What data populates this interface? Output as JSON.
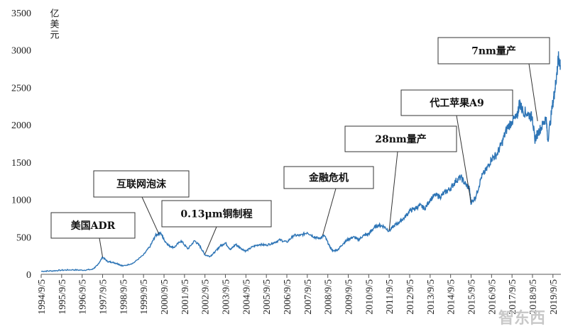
{
  "chart_data": {
    "type": "line",
    "title": "",
    "unit": "亿美元",
    "ylim": [
      0,
      3500
    ],
    "yticks": [
      0,
      500,
      1000,
      1500,
      2000,
      2500,
      3000,
      3500
    ],
    "xticks": [
      "1994/9/5",
      "1995/9/5",
      "1996/9/5",
      "1997/9/5",
      "1998/9/5",
      "1999/9/5",
      "2000/9/5",
      "2001/9/5",
      "2002/9/5",
      "2003/9/5",
      "2004/9/5",
      "2005/9/5",
      "2006/9/5",
      "2007/9/5",
      "2008/9/5",
      "2009/9/5",
      "2010/9/5",
      "2011/9/5",
      "2012/9/5",
      "2013/9/5",
      "2014/9/5",
      "2015/9/5",
      "2016/9/5",
      "2017/9/5",
      "2018/9/5",
      "2019/9/5"
    ],
    "line_color": "#2e75b6",
    "series": [
      {
        "x": [
          "1994-09-05",
          "1995-03-05",
          "1995-09-05",
          "1996-03-05",
          "1996-09-05",
          "1997-03-05",
          "1997-06-05",
          "1997-09-05",
          "1997-12-05",
          "1998-03-05",
          "1998-06-05",
          "1998-09-05",
          "1999-03-05",
          "1999-09-05",
          "2000-01-05",
          "2000-04-05",
          "2000-07-05",
          "2000-09-05",
          "2000-12-05",
          "2001-03-05",
          "2001-07-05",
          "2001-11-05",
          "2002-03-05",
          "2002-06-05",
          "2002-09-05",
          "2002-12-05",
          "2003-03-05",
          "2003-06-05",
          "2003-09-05",
          "2003-12-05",
          "2004-03-05",
          "2004-06-05",
          "2004-09-05",
          "2005-01-05",
          "2005-05-05",
          "2005-09-05",
          "2006-01-05",
          "2006-05-05",
          "2006-09-05",
          "2007-01-05",
          "2007-05-05",
          "2007-09-05",
          "2008-01-05",
          "2008-04-05",
          "2008-07-05",
          "2008-10-05",
          "2008-12-05",
          "2009-03-05",
          "2009-06-05",
          "2009-09-05",
          "2009-12-05",
          "2010-03-05",
          "2010-06-05",
          "2010-09-05",
          "2010-12-05",
          "2011-03-05",
          "2011-06-05",
          "2011-09-05",
          "2011-12-05",
          "2012-03-05",
          "2012-06-05",
          "2012-09-05",
          "2012-12-05",
          "2013-03-05",
          "2013-06-05",
          "2013-09-05",
          "2013-12-05",
          "2014-03-05",
          "2014-06-05",
          "2014-09-05",
          "2014-12-05",
          "2015-03-05",
          "2015-06-05",
          "2015-08-05",
          "2015-09-05",
          "2015-12-05",
          "2016-03-05",
          "2016-06-05",
          "2016-09-05",
          "2016-12-05",
          "2017-03-05",
          "2017-06-05",
          "2017-09-05",
          "2017-12-05",
          "2018-01-15",
          "2018-03-05",
          "2018-06-05",
          "2018-09-05",
          "2018-10-15",
          "2018-12-15",
          "2019-03-05",
          "2019-05-05",
          "2019-06-05",
          "2019-09-05",
          "2019-10-15",
          "2019-11-15",
          "2019-12-15",
          "2020-01-15"
        ],
        "y": [
          40,
          45,
          55,
          60,
          55,
          65,
          120,
          230,
          170,
          160,
          140,
          110,
          150,
          260,
          380,
          520,
          560,
          460,
          380,
          360,
          450,
          340,
          450,
          380,
          260,
          240,
          300,
          380,
          420,
          330,
          400,
          350,
          310,
          370,
          400,
          390,
          420,
          460,
          430,
          520,
          520,
          560,
          500,
          480,
          520,
          380,
          310,
          330,
          410,
          470,
          500,
          460,
          520,
          540,
          620,
          660,
          640,
          580,
          650,
          700,
          760,
          850,
          880,
          920,
          880,
          1000,
          1060,
          1040,
          1100,
          1150,
          1250,
          1300,
          1200,
          1150,
          950,
          1050,
          1300,
          1400,
          1550,
          1600,
          1750,
          1950,
          2050,
          2100,
          2300,
          2200,
          2150,
          2100,
          1800,
          1900,
          2000,
          2100,
          1800,
          2300,
          2500,
          2700,
          2900,
          2800
        ]
      }
    ],
    "annotations": [
      {
        "label": "美国ADR",
        "date": "1997-09-05",
        "value": 230
      },
      {
        "label": "互联网泡沫",
        "date": "2000-06-05",
        "value": 540
      },
      {
        "label": "0.13μm铜制程",
        "date": "2002-09-05",
        "value": 270
      },
      {
        "label": "金融危机",
        "date": "2008-06-05",
        "value": 520
      },
      {
        "label": "28nm量产",
        "date": "2011-09-05",
        "value": 590
      },
      {
        "label": "代工苹果A9",
        "date": "2015-09-05",
        "value": 960
      },
      {
        "label": "7nm量产",
        "date": "2018-12-05",
        "value": 2050
      }
    ]
  },
  "watermark": "智东西"
}
